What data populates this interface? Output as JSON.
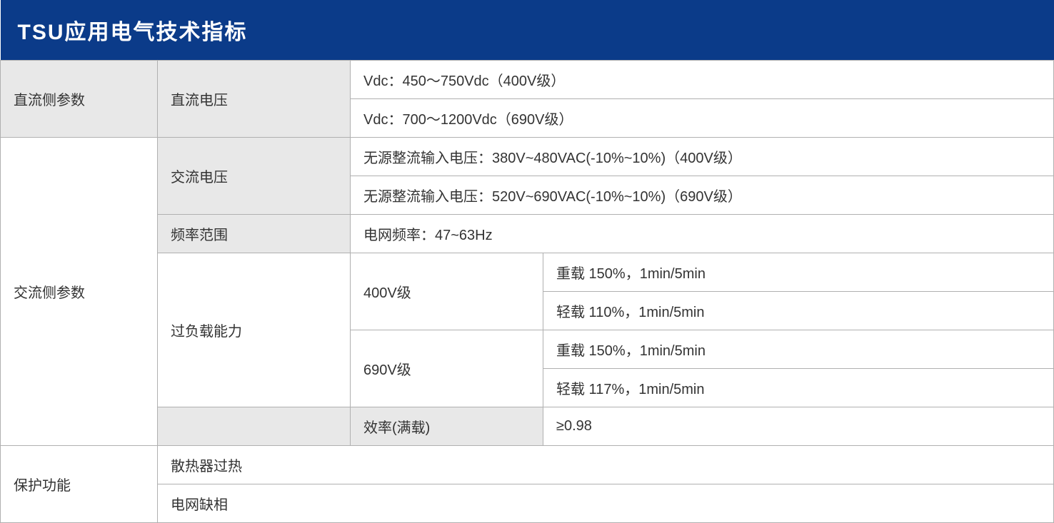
{
  "title": "TSU应用电气技术指标",
  "colors": {
    "header_bg": "#0b3b89",
    "header_text": "#ffffff",
    "shaded_bg": "#e8e8e8",
    "border": "#b0b0b0",
    "text": "#333333"
  },
  "sections": {
    "dc": {
      "group_label": "直流侧参数",
      "voltage_label": "直流电压",
      "rows": [
        "Vdc：450～750Vdc（400V级）",
        "Vdc：700～1200Vdc（690V级）"
      ]
    },
    "ac": {
      "group_label": "交流侧参数",
      "voltage_label": "交流电压",
      "voltage_rows": [
        "无源整流输入电压：380V~480VAC(-10%~10%)（400V级）",
        "无源整流输入电压：520V~690VAC(-10%~10%)（690V级）"
      ],
      "freq_label": "频率范围",
      "freq_value": "电网频率：47~63Hz",
      "overload_label": "过负载能力",
      "overload_groups": [
        {
          "level": "400V级",
          "rows": [
            "重载 150%，1min/5min",
            "轻载 110%，1min/5min"
          ]
        },
        {
          "level": "690V级",
          "rows": [
            "重载 150%，1min/5min",
            "轻载 117%，1min/5min"
          ]
        }
      ],
      "efficiency_label": "效率(满载)",
      "efficiency_value": "≥0.98"
    },
    "protection": {
      "group_label": "保护功能",
      "rows": [
        "散热器过热",
        "电网缺相"
      ]
    }
  }
}
